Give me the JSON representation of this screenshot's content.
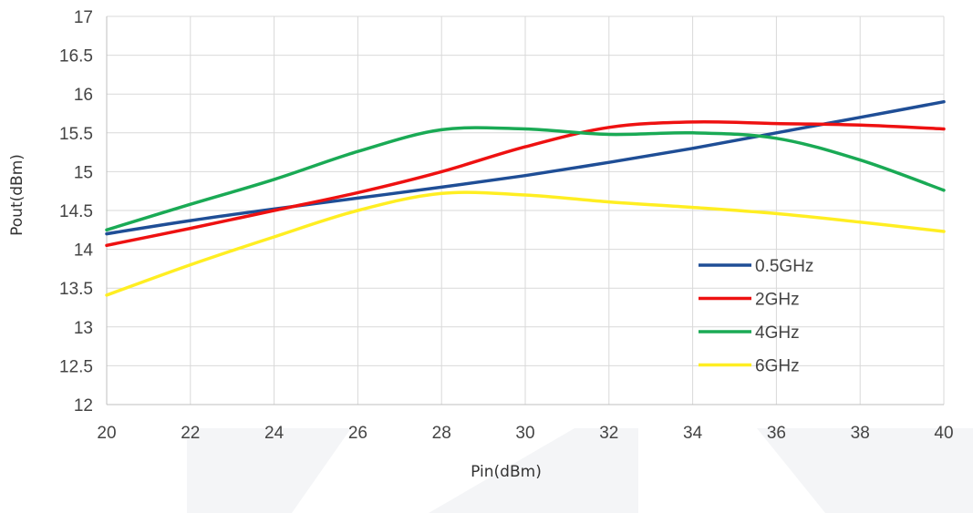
{
  "chart_data": {
    "type": "line",
    "title": "",
    "xlabel": "Pin(dBm)",
    "ylabel": "Pout(dBm)",
    "xlim": [
      20,
      40
    ],
    "ylim": [
      12,
      17
    ],
    "x_ticks": [
      "20",
      "22",
      "24",
      "26",
      "28",
      "30",
      "32",
      "34",
      "36",
      "38",
      "40"
    ],
    "y_ticks": [
      "12",
      "12.5",
      "13",
      "13.5",
      "14",
      "14.5",
      "15",
      "15.5",
      "16",
      "16.5",
      "17"
    ],
    "grid": true,
    "legend_position": "lower-right",
    "x": [
      20,
      22,
      24,
      26,
      28,
      30,
      32,
      34,
      36,
      38,
      40
    ],
    "series": [
      {
        "name": "0.5GHz",
        "color": "#1f4e96",
        "values": [
          14.2,
          14.37,
          14.52,
          14.66,
          14.8,
          14.95,
          15.12,
          15.3,
          15.5,
          15.7,
          15.9
        ]
      },
      {
        "name": "2GHz",
        "color": "#ee1111",
        "values": [
          14.05,
          14.27,
          14.5,
          14.73,
          15.0,
          15.32,
          15.57,
          15.64,
          15.62,
          15.6,
          15.55
        ]
      },
      {
        "name": "4GHz",
        "color": "#1aaa55",
        "values": [
          14.25,
          14.58,
          14.9,
          15.26,
          15.54,
          15.55,
          15.48,
          15.5,
          15.43,
          15.15,
          14.76
        ]
      },
      {
        "name": "6GHz",
        "color": "#ffee22",
        "values": [
          13.41,
          13.8,
          14.16,
          14.5,
          14.72,
          14.7,
          14.61,
          14.54,
          14.46,
          14.35,
          14.23
        ]
      }
    ]
  }
}
